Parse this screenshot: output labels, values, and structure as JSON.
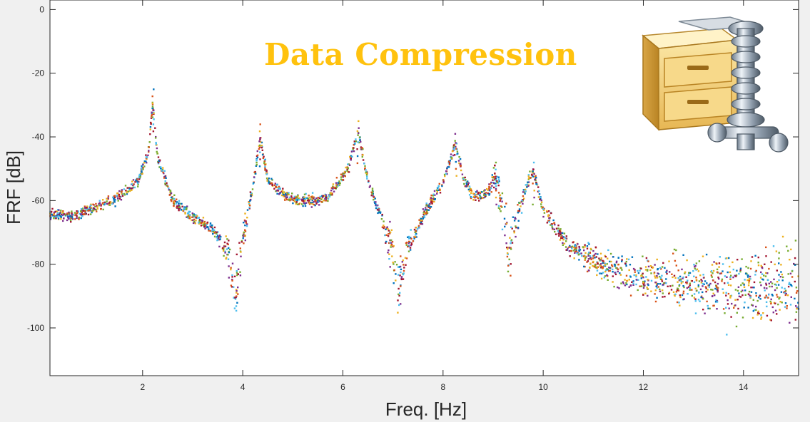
{
  "banner": {
    "title": "Data Compression",
    "color": "#ffc20e"
  },
  "icon": {
    "name": "zip-archive-icon"
  },
  "chart_data": {
    "type": "scatter",
    "title": "",
    "xlabel": "Freq. [Hz]",
    "ylabel": "FRF [dB]",
    "xlim": [
      0.15,
      15.1
    ],
    "ylim": [
      -115,
      3
    ],
    "xticks": [
      2,
      4,
      6,
      8,
      10,
      12,
      14
    ],
    "yticks": [
      0,
      -20,
      -40,
      -60,
      -80,
      -100
    ],
    "grid": false,
    "legend": "none",
    "marker": "small square",
    "series_colors": [
      "#0072bd",
      "#d95319",
      "#edb120",
      "#7e2f8e",
      "#77ac30",
      "#4dbeee",
      "#a2142f"
    ],
    "resonance_peaks": [
      {
        "x": 2.2,
        "y": -27
      },
      {
        "x": 4.35,
        "y": -38
      },
      {
        "x": 6.3,
        "y": -37
      },
      {
        "x": 8.25,
        "y": -41
      },
      {
        "x": 9.05,
        "y": -50
      },
      {
        "x": 9.8,
        "y": -50
      }
    ],
    "anti_resonances": [
      {
        "x": 3.85,
        "y": -95
      },
      {
        "x": 7.1,
        "y": -96
      },
      {
        "x": 9.3,
        "y": -85
      }
    ],
    "envelope": [
      [
        0.15,
        -64
      ],
      [
        0.6,
        -65
      ],
      [
        1.0,
        -62.5
      ],
      [
        1.5,
        -59
      ],
      [
        1.9,
        -54
      ],
      [
        2.1,
        -46
      ],
      [
        2.2,
        -30
      ],
      [
        2.3,
        -47
      ],
      [
        2.6,
        -60
      ],
      [
        3.0,
        -65
      ],
      [
        3.4,
        -69
      ],
      [
        3.7,
        -76
      ],
      [
        3.85,
        -90
      ],
      [
        4.0,
        -72
      ],
      [
        4.2,
        -56
      ],
      [
        4.35,
        -40
      ],
      [
        4.5,
        -54
      ],
      [
        4.9,
        -59
      ],
      [
        5.3,
        -60
      ],
      [
        5.7,
        -59
      ],
      [
        6.1,
        -50
      ],
      [
        6.3,
        -38
      ],
      [
        6.5,
        -54
      ],
      [
        6.8,
        -67
      ],
      [
        7.0,
        -77
      ],
      [
        7.1,
        -88
      ],
      [
        7.3,
        -75
      ],
      [
        7.6,
        -65
      ],
      [
        8.0,
        -54
      ],
      [
        8.25,
        -42
      ],
      [
        8.4,
        -53
      ],
      [
        8.6,
        -58.5
      ],
      [
        8.9,
        -57.5
      ],
      [
        9.05,
        -51
      ],
      [
        9.2,
        -64
      ],
      [
        9.3,
        -78
      ],
      [
        9.45,
        -66
      ],
      [
        9.7,
        -54
      ],
      [
        9.8,
        -51
      ],
      [
        10.0,
        -63
      ],
      [
        10.5,
        -74
      ],
      [
        11.0,
        -79
      ],
      [
        12.0,
        -84
      ],
      [
        13.0,
        -86
      ],
      [
        14.0,
        -87
      ],
      [
        15.1,
        -88
      ]
    ]
  }
}
